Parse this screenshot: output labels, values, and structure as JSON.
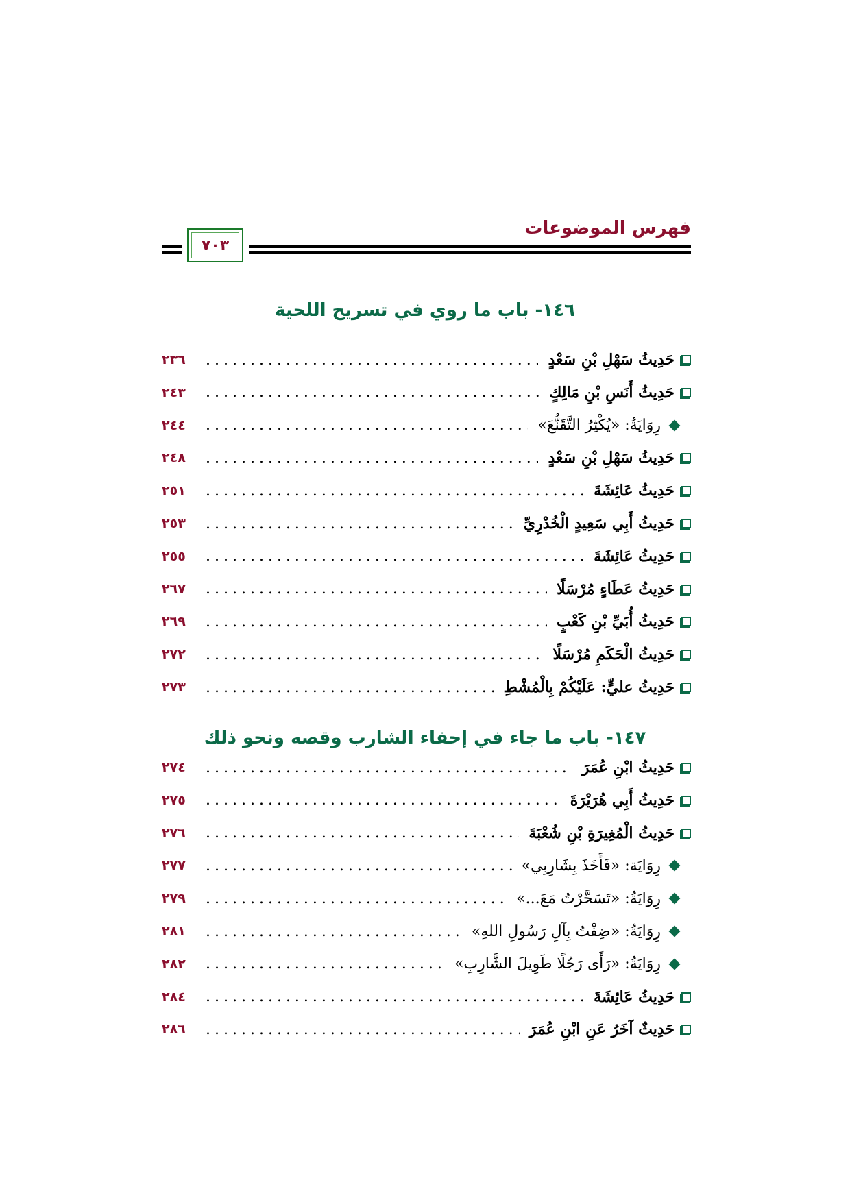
{
  "header": {
    "title": "فهرس الموضوعات",
    "page_number": "٧٠٣"
  },
  "colors": {
    "header": "#8b0f2e",
    "section": "#0b6a48",
    "page_numbers": "#8b0f2e"
  },
  "sections": [
    {
      "title": "١٤٦- باب ما روي في تسريح اللحية",
      "entries": [
        {
          "type": "square",
          "label": "حَدِيثُ سَهْلِ بْنِ سَعْدٍ",
          "page": "٢٣٦"
        },
        {
          "type": "square",
          "label": "حَدِيثُ أَنَسِ بْنِ مَالِكٍ",
          "page": "٢٤٣"
        },
        {
          "type": "diamond",
          "label": "رِوَايَةُ: «يُكْثِرُ التَّقَنُّعَ»",
          "page": "٢٤٤"
        },
        {
          "type": "square",
          "label": "حَدِيثُ سَهْلِ بْنِ سَعْدٍ",
          "page": "٢٤٨"
        },
        {
          "type": "square",
          "label": "حَدِيثُ عَائِشَةَ",
          "page": "٢٥١"
        },
        {
          "type": "square",
          "label": "حَدِيثُ أَبِي سَعِيدٍ الْخُدْرِيِّ",
          "page": "٢٥٣"
        },
        {
          "type": "square",
          "label": "حَدِيثُ عَائِشَةَ",
          "page": "٢٥٥"
        },
        {
          "type": "square",
          "label": "حَدِيثُ عَطَاءٍ مُرْسَلًا",
          "page": "٢٦٧"
        },
        {
          "type": "square",
          "label": "حَدِيثُ أُبَيِّ بْنِ كَعْبٍ",
          "page": "٢٦٩"
        },
        {
          "type": "square",
          "label": "حَدِيثُ الْحَكَمِ مُرْسَلًا",
          "page": "٢٧٢"
        },
        {
          "type": "square",
          "label": "حَدِيثُ عليٍّ: عَلَيْكُمْ بِالْمُشْطِ",
          "page": "٢٧٣"
        }
      ]
    },
    {
      "title": "١٤٧- باب ما جاء في إحفاء الشارب وقصه ونحو ذلك",
      "entries": [
        {
          "type": "square",
          "label": "حَدِيثُ ابْنِ عُمَرَ",
          "page": "٢٧٤"
        },
        {
          "type": "square",
          "label": "حَدِيثُ أَبِي هُرَيْرَةَ",
          "page": "٢٧٥"
        },
        {
          "type": "square",
          "label": "حَدِيثُ الْمُغِيرَةِ بْنِ شُعْبَةَ",
          "page": "٢٧٦"
        },
        {
          "type": "diamond",
          "label": "رِوَايَة: «فَأَخَذَ بِشَارِبِي»",
          "page": "٢٧٧"
        },
        {
          "type": "diamond",
          "label": "رِوَايَةُ: «تَسَحَّرْتُ مَعَ...»",
          "page": "٢٧٩"
        },
        {
          "type": "diamond",
          "label": "رِوَايَةُ: «ضِفْتُ بِآلِ رَسُولِ اللهِ»",
          "page": "٢٨١"
        },
        {
          "type": "diamond",
          "label": "رِوَايَةُ: «رَأَى رَجُلًا طَوِيلَ الشَّارِبِ»",
          "page": "٢٨٢"
        },
        {
          "type": "square",
          "label": "حَدِيثُ عَائِشَةَ",
          "page": "٢٨٤"
        },
        {
          "type": "square",
          "label": "حَدِيثٌ آخَرُ عَنِ ابْنِ عُمَرَ",
          "page": "٢٨٦"
        }
      ]
    }
  ]
}
